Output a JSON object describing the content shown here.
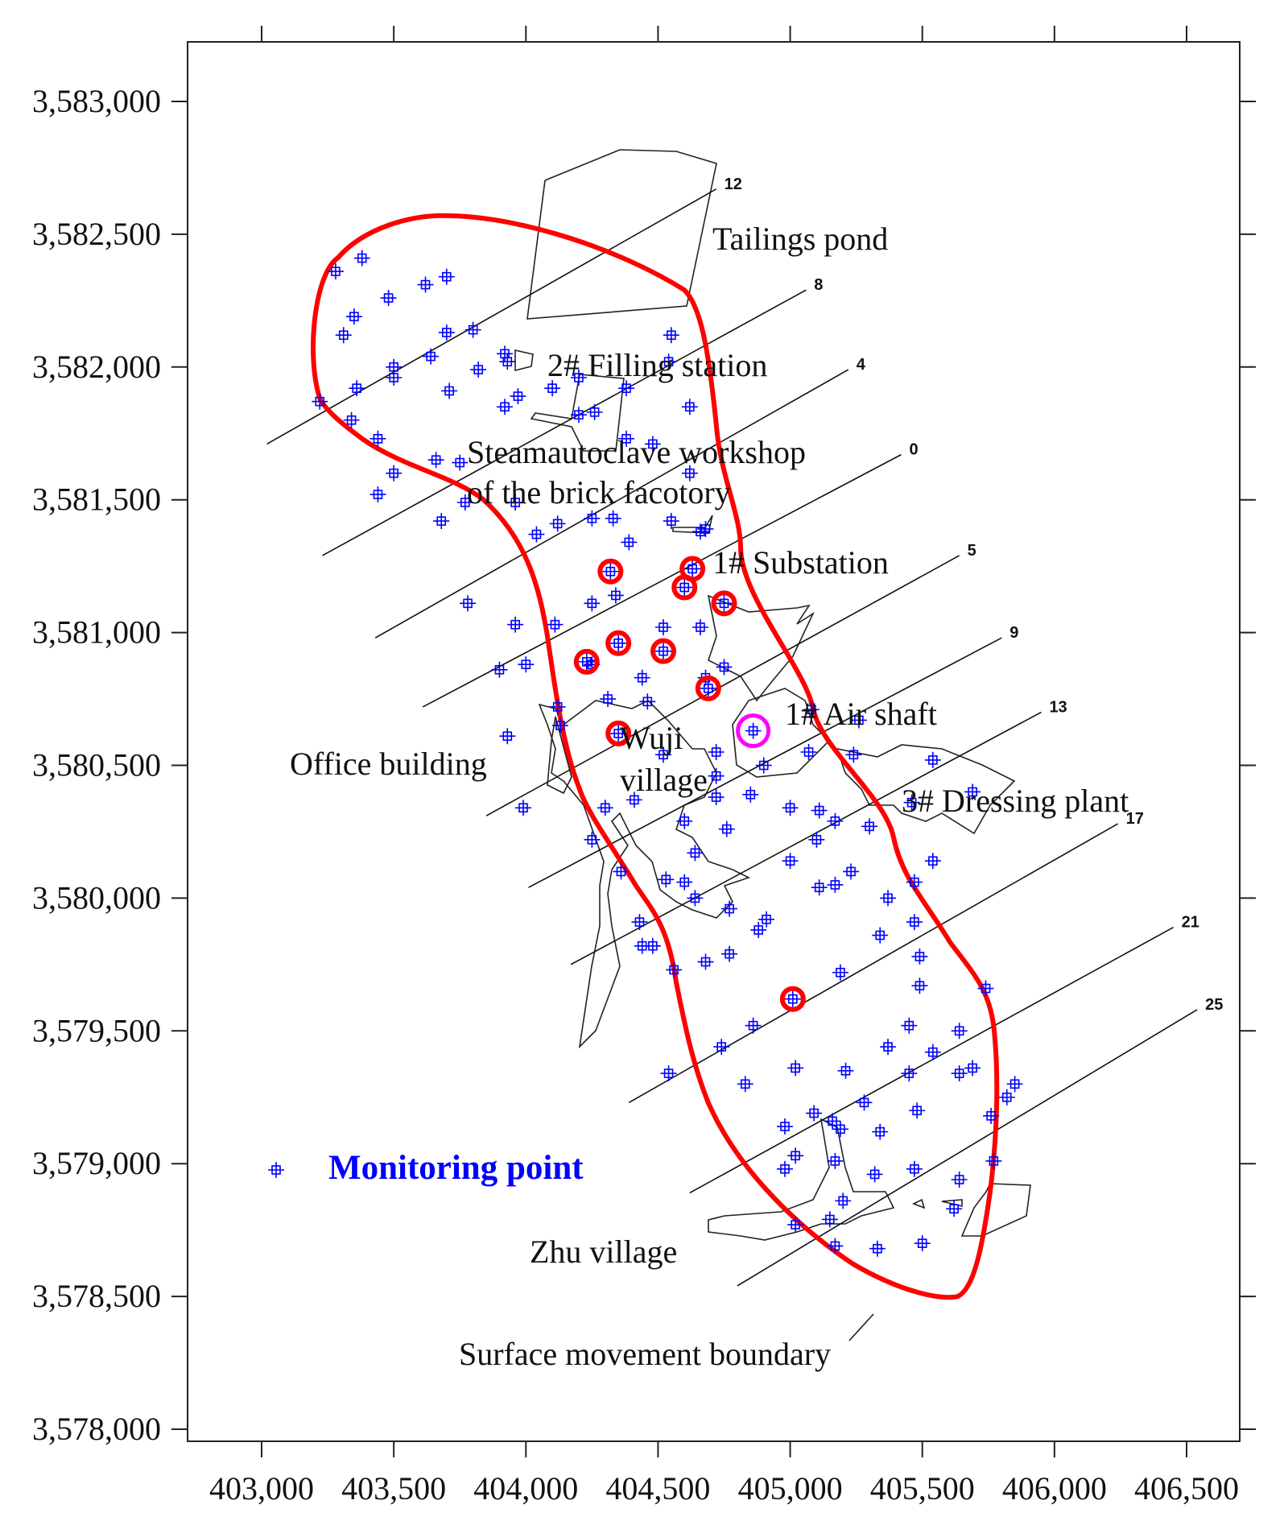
{
  "colors": {
    "boundary": "#ff0000",
    "monitoring_point": "#0000ff",
    "highlight_point": "#ff00ff",
    "feature_outline": "#222222"
  },
  "x_ticks": [
    "403,000",
    "403,500",
    "404,000",
    "404,500",
    "405,000",
    "405,500",
    "406,000",
    "406,500"
  ],
  "y_ticks": [
    "3,583,000",
    "3,582,500",
    "3,582,000",
    "3,581,500",
    "3,581,000",
    "3,580,500",
    "3,580,000",
    "3,579,500",
    "3,579,000",
    "3,578,500",
    "3,578,000"
  ],
  "labels": {
    "tailings_pond": "Tailings pond",
    "filling_station": "2# Filling station",
    "steam_workshop_line1": "Steamautoclave workshop",
    "steam_workshop_line2": "of the brick facotory",
    "substation": "1# Substation",
    "air_shaft": "1# Air shaft",
    "office_building": "Office building",
    "wuji_village_line1": "Wuji",
    "wuji_village_line2": "village",
    "dressing_plant": "3# Dressing plant",
    "zhu_village": "Zhu village",
    "surface_boundary": "Surface movement boundary"
  },
  "survey_lines": [
    {
      "label": "12",
      "x1": 403020,
      "y1": 3581710,
      "x2": 404720,
      "y2": 3582670
    },
    {
      "label": "8",
      "x1": 403230,
      "y1": 3581290,
      "x2": 405060,
      "y2": 3582290
    },
    {
      "label": "4",
      "x1": 403430,
      "y1": 3580980,
      "x2": 405220,
      "y2": 3581990
    },
    {
      "label": "0",
      "x1": 403610,
      "y1": 3580720,
      "x2": 405420,
      "y2": 3581670
    },
    {
      "label": "5",
      "x1": 403850,
      "y1": 3580310,
      "x2": 405640,
      "y2": 3581290
    },
    {
      "label": "9",
      "x1": 404010,
      "y1": 3580040,
      "x2": 405800,
      "y2": 3580980
    },
    {
      "label": "13",
      "x1": 404170,
      "y1": 3579750,
      "x2": 405950,
      "y2": 3580700
    },
    {
      "label": "17",
      "x1": 404390,
      "y1": 3579230,
      "x2": 406240,
      "y2": 3580280
    },
    {
      "label": "21",
      "x1": 404620,
      "y1": 3578890,
      "x2": 406450,
      "y2": 3579890
    },
    {
      "label": "25",
      "x1": 404800,
      "y1": 3578540,
      "x2": 406540,
      "y2": 3579580
    }
  ],
  "legend": {
    "label": "Monitoring point"
  },
  "monitoring_points": [
    [
      403280,
      3582360
    ],
    [
      403380,
      3582410
    ],
    [
      403350,
      3582190
    ],
    [
      403310,
      3582120
    ],
    [
      403480,
      3582260
    ],
    [
      403620,
      3582310
    ],
    [
      403700,
      3582340
    ],
    [
      403220,
      3581870
    ],
    [
      403340,
      3581800
    ],
    [
      403360,
      3581920
    ],
    [
      403500,
      3582000
    ],
    [
      403500,
      3581960
    ],
    [
      403640,
      3582040
    ],
    [
      403700,
      3582130
    ],
    [
      403710,
      3581910
    ],
    [
      403800,
      3582140
    ],
    [
      403820,
      3581990
    ],
    [
      403920,
      3582050
    ],
    [
      403930,
      3582020
    ],
    [
      403920,
      3581850
    ],
    [
      403970,
      3581890
    ],
    [
      404100,
      3581920
    ],
    [
      404200,
      3581960
    ],
    [
      404200,
      3581820
    ],
    [
      404260,
      3581830
    ],
    [
      404380,
      3581920
    ],
    [
      404380,
      3581730
    ],
    [
      404480,
      3581710
    ],
    [
      404540,
      3582020
    ],
    [
      404550,
      3582120
    ],
    [
      404620,
      3581850
    ],
    [
      404620,
      3581600
    ],
    [
      403440,
      3581730
    ],
    [
      403500,
      3581600
    ],
    [
      403440,
      3581520
    ],
    [
      403660,
      3581650
    ],
    [
      403750,
      3581640
    ],
    [
      403770,
      3581490
    ],
    [
      403680,
      3581420
    ],
    [
      403960,
      3581490
    ],
    [
      404040,
      3581370
    ],
    [
      404120,
      3581410
    ],
    [
      404250,
      3581430
    ],
    [
      404330,
      3581430
    ],
    [
      404390,
      3581340
    ],
    [
      404550,
      3581420
    ],
    [
      404660,
      3581380
    ],
    [
      404680,
      3581390
    ],
    [
      403780,
      3581110
    ],
    [
      403960,
      3581030
    ],
    [
      404110,
      3581030
    ],
    [
      404250,
      3581110
    ],
    [
      404340,
      3581140
    ],
    [
      404520,
      3581020
    ],
    [
      404660,
      3581020
    ],
    [
      403900,
      3580860
    ],
    [
      404000,
      3580880
    ],
    [
      404250,
      3580880
    ],
    [
      404440,
      3580830
    ],
    [
      404680,
      3580830
    ],
    [
      404750,
      3580870
    ],
    [
      404120,
      3580720
    ],
    [
      404310,
      3580750
    ],
    [
      404460,
      3580740
    ],
    [
      404130,
      3580650
    ],
    [
      403930,
      3580610
    ],
    [
      404520,
      3580540
    ],
    [
      404720,
      3580550
    ],
    [
      404720,
      3580460
    ],
    [
      404900,
      3580500
    ],
    [
      405070,
      3580550
    ],
    [
      405080,
      3580710
    ],
    [
      405260,
      3580670
    ],
    [
      405240,
      3580540
    ],
    [
      405540,
      3580520
    ],
    [
      405690,
      3580400
    ],
    [
      405460,
      3580360
    ],
    [
      403990,
      3580340
    ],
    [
      404300,
      3580340
    ],
    [
      404410,
      3580370
    ],
    [
      404600,
      3580290
    ],
    [
      404720,
      3580380
    ],
    [
      404850,
      3580390
    ],
    [
      405000,
      3580340
    ],
    [
      405110,
      3580330
    ],
    [
      405100,
      3580220
    ],
    [
      405170,
      3580290
    ],
    [
      405300,
      3580270
    ],
    [
      404250,
      3580220
    ],
    [
      404640,
      3580170
    ],
    [
      404760,
      3580260
    ],
    [
      404600,
      3580060
    ],
    [
      404530,
      3580070
    ],
    [
      404640,
      3580000
    ],
    [
      404770,
      3579960
    ],
    [
      404910,
      3579920
    ],
    [
      404880,
      3579880
    ],
    [
      405000,
      3580140
    ],
    [
      405110,
      3580040
    ],
    [
      405170,
      3580050
    ],
    [
      405230,
      3580100
    ],
    [
      405370,
      3580000
    ],
    [
      405470,
      3580060
    ],
    [
      405540,
      3580140
    ],
    [
      404360,
      3580100
    ],
    [
      404430,
      3579910
    ],
    [
      404440,
      3579820
    ],
    [
      404480,
      3579820
    ],
    [
      404560,
      3579730
    ],
    [
      404680,
      3579760
    ],
    [
      404770,
      3579790
    ],
    [
      404860,
      3579520
    ],
    [
      404740,
      3579440
    ],
    [
      404540,
      3579340
    ],
    [
      404830,
      3579300
    ],
    [
      405020,
      3579360
    ],
    [
      405190,
      3579720
    ],
    [
      405340,
      3579860
    ],
    [
      405470,
      3579910
    ],
    [
      405490,
      3579780
    ],
    [
      405490,
      3579670
    ],
    [
      405450,
      3579520
    ],
    [
      405370,
      3579440
    ],
    [
      405210,
      3579350
    ],
    [
      405090,
      3579190
    ],
    [
      404980,
      3579140
    ],
    [
      405020,
      3579030
    ],
    [
      405160,
      3579160
    ],
    [
      405190,
      3579130
    ],
    [
      405280,
      3579230
    ],
    [
      405340,
      3579120
    ],
    [
      405450,
      3579340
    ],
    [
      405480,
      3579200
    ],
    [
      405540,
      3579420
    ],
    [
      405640,
      3579500
    ],
    [
      405640,
      3579340
    ],
    [
      405690,
      3579360
    ],
    [
      405760,
      3579180
    ],
    [
      405770,
      3579010
    ],
    [
      405820,
      3579250
    ],
    [
      405850,
      3579300
    ],
    [
      405740,
      3579660
    ],
    [
      405320,
      3578960
    ],
    [
      405470,
      3578980
    ],
    [
      405170,
      3579010
    ],
    [
      404980,
      3578980
    ],
    [
      405020,
      3578770
    ],
    [
      405150,
      3578790
    ],
    [
      405170,
      3578690
    ],
    [
      405330,
      3578680
    ],
    [
      405500,
      3578700
    ],
    [
      405620,
      3578830
    ],
    [
      405640,
      3578940
    ],
    [
      405200,
      3578860
    ]
  ],
  "subsidence_points": [
    [
      404320,
      3581230
    ],
    [
      404630,
      3581240
    ],
    [
      404600,
      3581170
    ],
    [
      404750,
      3581110
    ],
    [
      404350,
      3580960
    ],
    [
      404520,
      3580930
    ],
    [
      404230,
      3580890
    ],
    [
      404690,
      3580790
    ],
    [
      404350,
      3580620
    ],
    [
      405010,
      3579620
    ]
  ],
  "highlight_points": [
    [
      404860,
      3580630
    ]
  ]
}
